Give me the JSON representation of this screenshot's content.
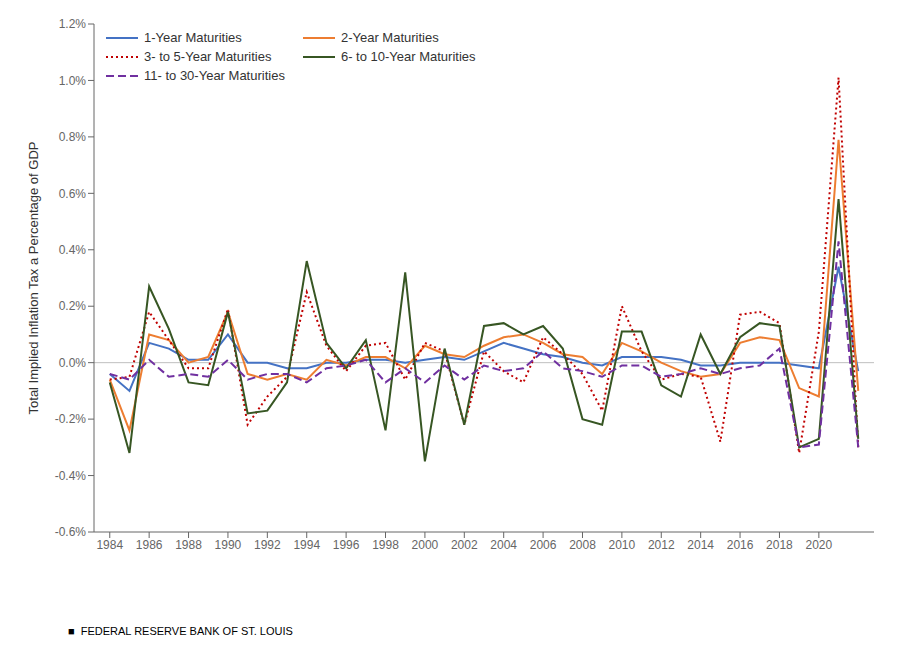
{
  "chart_data": {
    "type": "line",
    "ylabel": "Total Implied Inflation Tax a Percentage of GDP",
    "x": [
      1984,
      1985,
      1986,
      1987,
      1988,
      1989,
      1990,
      1991,
      1992,
      1993,
      1994,
      1995,
      1996,
      1997,
      1998,
      1999,
      2000,
      2001,
      2002,
      2003,
      2004,
      2005,
      2006,
      2007,
      2008,
      2009,
      2010,
      2011,
      2012,
      2013,
      2014,
      2015,
      2016,
      2017,
      2018,
      2019,
      2020,
      2021,
      2022
    ],
    "series": [
      {
        "name": "1-Year Maturities",
        "color": "#4472C4",
        "line_style": "solid",
        "values": [
          -0.04,
          -0.1,
          0.07,
          0.05,
          0.01,
          0.01,
          0.1,
          0.0,
          0.0,
          -0.02,
          -0.02,
          0.0,
          0.0,
          0.01,
          0.01,
          0.0,
          0.01,
          0.02,
          0.01,
          0.04,
          0.07,
          0.05,
          0.03,
          0.02,
          0.0,
          -0.01,
          0.02,
          0.02,
          0.02,
          0.01,
          -0.01,
          -0.01,
          0.0,
          0.0,
          0.0,
          -0.01,
          -0.02,
          0.34,
          -0.03
        ]
      },
      {
        "name": "2-Year Maturities",
        "color": "#ED7D31",
        "line_style": "solid",
        "values": [
          -0.06,
          -0.24,
          0.1,
          0.08,
          0.0,
          0.02,
          0.18,
          -0.04,
          -0.06,
          -0.04,
          -0.06,
          0.01,
          -0.01,
          0.02,
          0.02,
          -0.02,
          0.06,
          0.03,
          0.02,
          0.06,
          0.09,
          0.1,
          0.07,
          0.03,
          0.02,
          -0.04,
          0.07,
          0.04,
          0.0,
          -0.03,
          -0.05,
          -0.04,
          0.07,
          0.09,
          0.08,
          -0.09,
          -0.12,
          0.79,
          -0.1
        ]
      },
      {
        "name": "3- to 5-Year Maturities",
        "color": "#C00000",
        "line_style": "dotted",
        "values": [
          -0.06,
          -0.05,
          0.18,
          0.08,
          -0.02,
          -0.02,
          0.19,
          -0.22,
          -0.12,
          -0.05,
          0.25,
          0.06,
          -0.03,
          0.06,
          0.07,
          -0.06,
          0.07,
          0.04,
          -0.22,
          0.04,
          -0.03,
          -0.07,
          0.09,
          0.03,
          -0.04,
          -0.17,
          0.2,
          0.04,
          -0.06,
          -0.04,
          -0.05,
          -0.28,
          0.17,
          0.18,
          0.14,
          -0.32,
          0.11,
          1.01,
          -0.3
        ]
      },
      {
        "name": "6- to 10-Year Maturities",
        "color": "#375623",
        "line_style": "solid",
        "values": [
          -0.07,
          -0.32,
          0.27,
          0.12,
          -0.07,
          -0.08,
          0.18,
          -0.18,
          -0.17,
          -0.07,
          0.36,
          0.07,
          -0.02,
          0.08,
          -0.24,
          0.32,
          -0.35,
          0.05,
          -0.22,
          0.13,
          0.14,
          0.1,
          0.13,
          0.05,
          -0.2,
          -0.22,
          0.11,
          0.11,
          -0.08,
          -0.12,
          0.1,
          -0.04,
          0.09,
          0.14,
          0.13,
          -0.3,
          -0.27,
          0.58,
          -0.27
        ]
      },
      {
        "name": "11- to 30-Year Maturities",
        "color": "#7030A0",
        "line_style": "dashed",
        "values": [
          -0.04,
          -0.06,
          0.01,
          -0.05,
          -0.04,
          -0.05,
          0.01,
          -0.06,
          -0.04,
          -0.04,
          -0.07,
          -0.02,
          -0.01,
          0.01,
          -0.07,
          -0.02,
          -0.07,
          -0.01,
          -0.06,
          -0.01,
          -0.03,
          -0.02,
          0.04,
          -0.02,
          -0.03,
          -0.05,
          -0.01,
          -0.01,
          -0.05,
          -0.04,
          -0.02,
          -0.04,
          -0.02,
          -0.01,
          0.05,
          -0.3,
          -0.29,
          0.43,
          -0.3
        ]
      }
    ],
    "xlim": [
      1983.2,
      2022.8
    ],
    "xticks": [
      1984,
      1986,
      1988,
      1990,
      1992,
      1994,
      1996,
      1998,
      2000,
      2002,
      2004,
      2006,
      2008,
      2010,
      2012,
      2014,
      2016,
      2018,
      2020
    ],
    "ylim": [
      -0.6,
      1.2
    ],
    "yticks": [
      {
        "value": -0.6,
        "label": "-0.6%"
      },
      {
        "value": -0.4,
        "label": "-0.4%"
      },
      {
        "value": -0.2,
        "label": "-0.2%"
      },
      {
        "value": 0.0,
        "label": "0.0%"
      },
      {
        "value": 0.2,
        "label": "0.2%"
      },
      {
        "value": 0.4,
        "label": "0.4%"
      },
      {
        "value": 0.6,
        "label": "0.6%"
      },
      {
        "value": 0.8,
        "label": "0.8%"
      },
      {
        "value": 1.0,
        "label": "1.0%"
      },
      {
        "value": 1.2,
        "label": "1.2%"
      }
    ],
    "hlines": [
      0
    ],
    "grid": false,
    "legend": "upper left",
    "annotations": [
      "■  FEDERAL RESERVE BANK OF ST. LOUIS"
    ]
  }
}
